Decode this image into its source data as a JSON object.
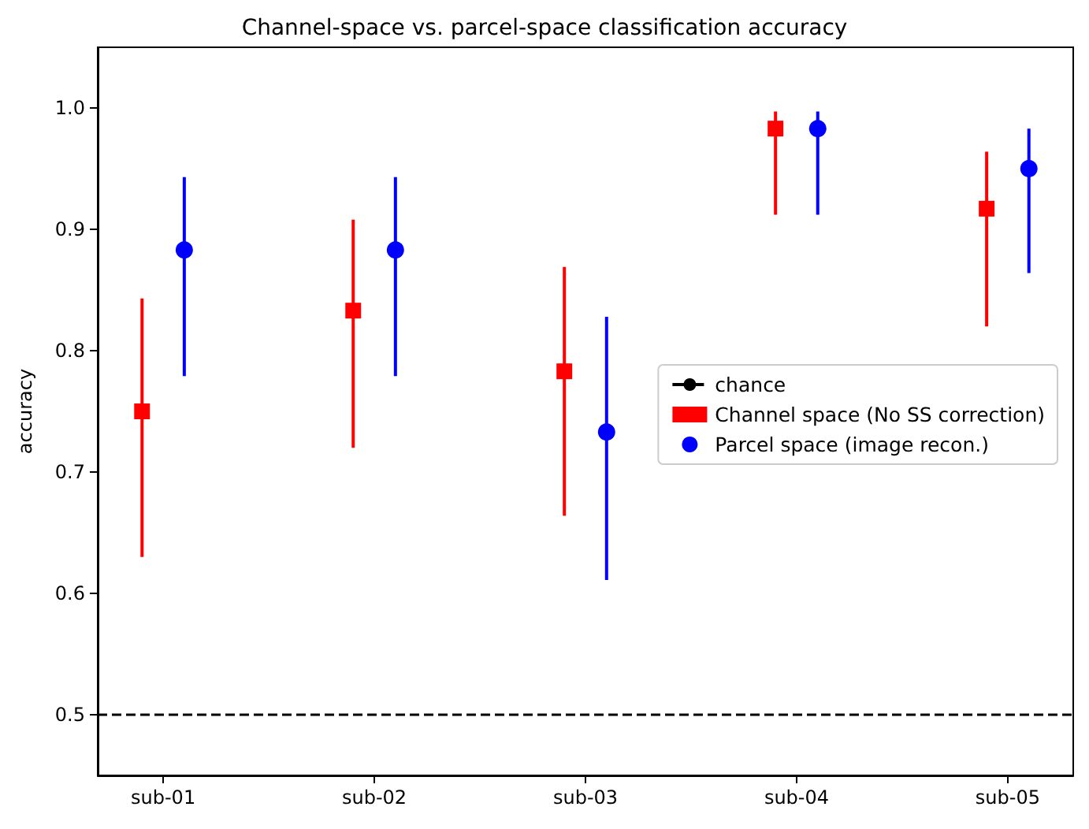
{
  "chart_data": {
    "type": "scatter",
    "title": "Channel-space vs. parcel-space classification accuracy",
    "ylabel": "accuracy",
    "categories": [
      "sub-01",
      "sub-02",
      "sub-03",
      "sub-04",
      "sub-05"
    ],
    "series": [
      {
        "name": "Channel space (No SS correction)",
        "color": "#ff0000",
        "marker": "square",
        "values": [
          0.75,
          0.833,
          0.783,
          0.983,
          0.917
        ],
        "errors": [
          [
            0.63,
            0.843
          ],
          [
            0.72,
            0.908
          ],
          [
            0.664,
            0.869
          ],
          [
            0.912,
            0.997
          ],
          [
            0.82,
            0.964
          ]
        ]
      },
      {
        "name": "Parcel space (image recon.)",
        "color": "#0000ff",
        "marker": "circle",
        "values": [
          0.883,
          0.883,
          0.733,
          0.983,
          0.95
        ],
        "errors": [
          [
            0.779,
            0.943
          ],
          [
            0.779,
            0.943
          ],
          [
            0.611,
            0.828
          ],
          [
            0.912,
            0.997
          ],
          [
            0.864,
            0.983
          ]
        ]
      }
    ],
    "ref_lines": [
      {
        "axis": "y",
        "value": 0.5,
        "label": "chance",
        "color": "#000000",
        "line_style": "dashed"
      }
    ],
    "ylim": [
      0.45,
      1.05
    ],
    "yticks": [
      0.5,
      0.6,
      0.7,
      0.8,
      0.9,
      {
        "value": 1.0,
        "label": "1.0"
      }
    ],
    "grid": false,
    "legend": "center right"
  }
}
